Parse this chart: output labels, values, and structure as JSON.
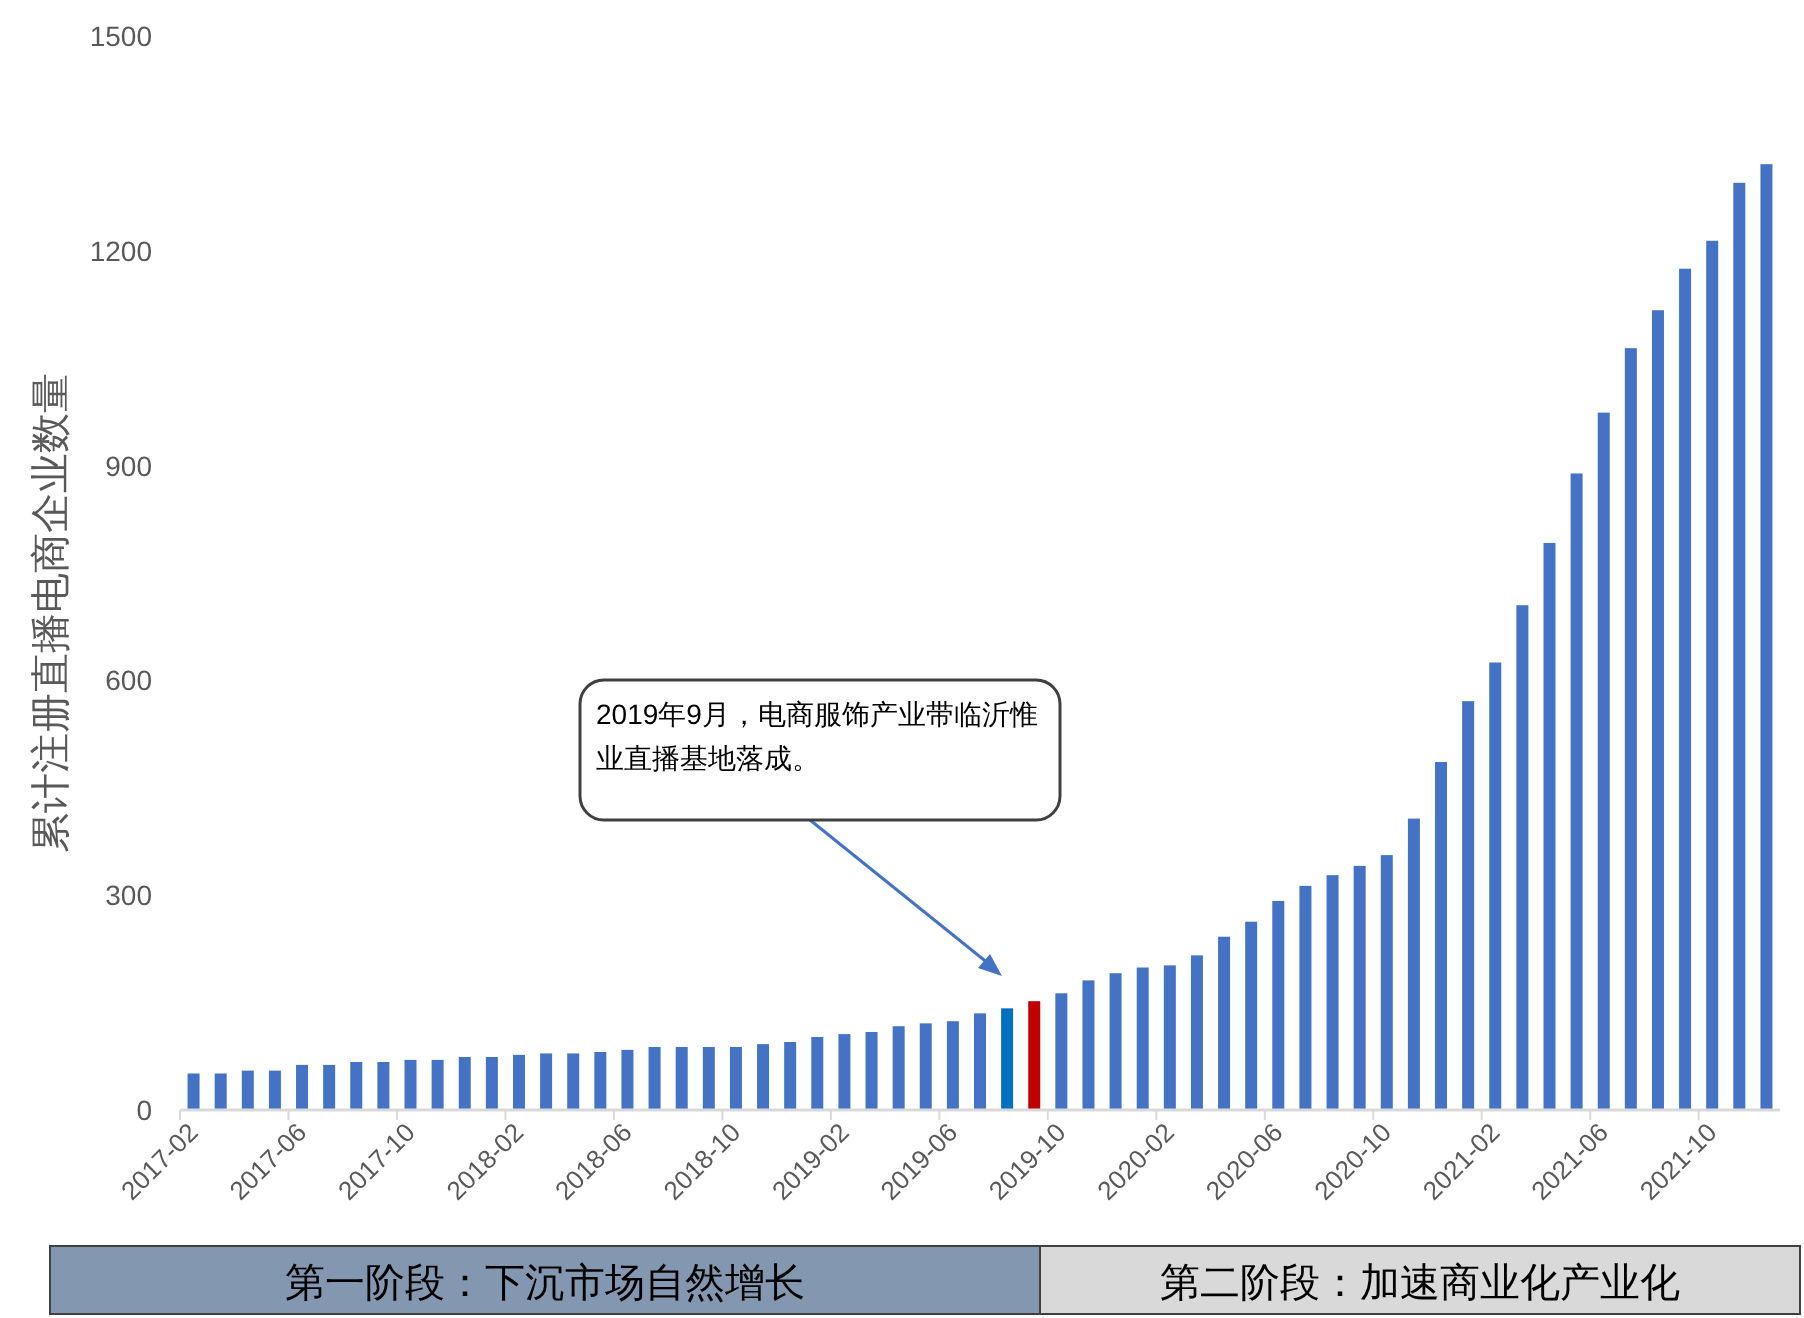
{
  "chart_data": {
    "type": "bar",
    "ylabel": "累计注册直播电商企业数量",
    "categories": [
      "2017-02",
      null,
      null,
      null,
      "2017-06",
      null,
      null,
      null,
      "2017-10",
      null,
      null,
      null,
      "2018-02",
      null,
      null,
      null,
      "2018-06",
      null,
      null,
      null,
      "2018-10",
      null,
      null,
      null,
      "2019-02",
      null,
      null,
      null,
      "2019-06",
      null,
      null,
      null,
      "2019-10",
      null,
      null,
      null,
      "2020-02",
      null,
      null,
      null,
      "2020-06",
      null,
      null,
      null,
      "2020-10",
      null,
      null,
      null,
      "2021-02",
      null,
      null,
      null,
      "2021-06",
      null,
      null,
      null,
      "2021-10",
      null,
      null
    ],
    "values": [
      51,
      51,
      55,
      55,
      63,
      63,
      67,
      67,
      70,
      70,
      74,
      74,
      77,
      79,
      79,
      81,
      84,
      88,
      88,
      88,
      88,
      92,
      95,
      102,
      106,
      109,
      117,
      121,
      124,
      135,
      142,
      152,
      163,
      181,
      191,
      199,
      202,
      216,
      242,
      263,
      292,
      313,
      328,
      341,
      356,
      407,
      486,
      571,
      625,
      705,
      792,
      889,
      974,
      1064,
      1117,
      1175,
      1214,
      1295,
      1321
    ],
    "colors": [
      "#4472c4",
      "#4472c4",
      "#4472c4",
      "#4472c4",
      "#4472c4",
      "#4472c4",
      "#4472c4",
      "#4472c4",
      "#4472c4",
      "#4472c4",
      "#4472c4",
      "#4472c4",
      "#4472c4",
      "#4472c4",
      "#4472c4",
      "#4472c4",
      "#4472c4",
      "#4472c4",
      "#4472c4",
      "#4472c4",
      "#4472c4",
      "#4472c4",
      "#4472c4",
      "#4472c4",
      "#4472c4",
      "#4472c4",
      "#4472c4",
      "#4472c4",
      "#4472c4",
      "#4472c4",
      "#0070c0",
      "#c00000",
      "#4472c4",
      "#4472c4",
      "#4472c4",
      "#4472c4",
      "#4472c4",
      "#4472c4",
      "#4472c4",
      "#4472c4",
      "#4472c4",
      "#4472c4",
      "#4472c4",
      "#4472c4",
      "#4472c4",
      "#4472c4",
      "#4472c4",
      "#4472c4",
      "#4472c4",
      "#4472c4",
      "#4472c4",
      "#4472c4",
      "#4472c4",
      "#4472c4",
      "#4472c4",
      "#4472c4",
      "#4472c4",
      "#4472c4",
      "#4472c4"
    ],
    "ylim": [
      0,
      1500
    ],
    "yticks": [
      0,
      300,
      600,
      900,
      1200,
      1500
    ],
    "annotations": [
      "2019年9月，电商服饰产业带临沂惟业直播基地落成。",
      "第一阶段：下沉市场自然增长",
      "第二阶段：加速商业化产业化"
    ]
  }
}
